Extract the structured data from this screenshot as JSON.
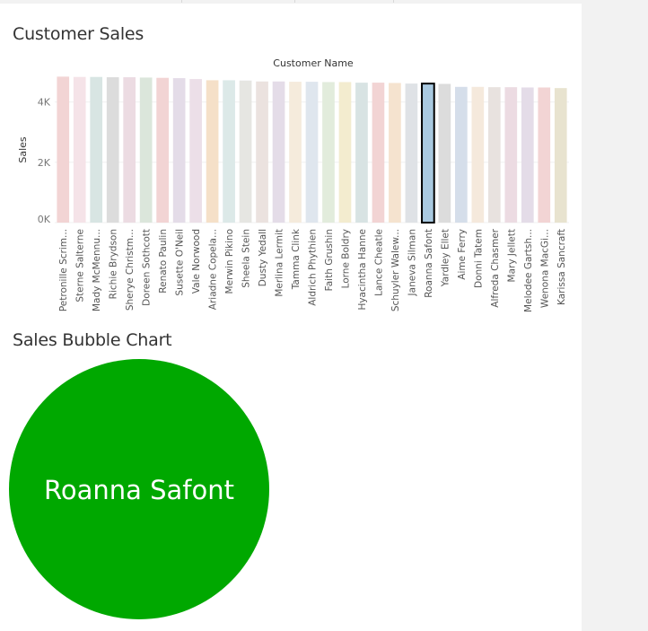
{
  "dashboard": {
    "sheet1_title": "Customer Sales",
    "sheet2_title": "Sales Bubble Chart"
  },
  "chart_data": [
    {
      "type": "bar",
      "title": "Customer Sales",
      "header_label": "Customer Name",
      "ylabel": "Sales",
      "yticks": [
        0,
        2000,
        4000
      ],
      "ytick_labels": [
        "0K",
        "2K",
        "4K"
      ],
      "ylim": [
        0,
        5000
      ],
      "grid": true,
      "selected_category": "Roanna Safont",
      "categories": [
        "Petronille Scrim...",
        "Sterne Salterne",
        "Mady McMennu...",
        "Richie Brydson",
        "Sherye Christm...",
        "Doreen Sothcott",
        "Renato Paulin",
        "Susette O'Neil",
        "Vale Norwood",
        "Ariadne Copela...",
        "Merwin Pikino",
        "Sheela Stein",
        "Dusty Yedall",
        "Merlina Lermit",
        "Tamma Clink",
        "Aldrich Phythien",
        "Faith Grushin",
        "Lorne Boldry",
        "Hyacintha Hanne",
        "Lance Cheatle",
        "Schuyler Walew...",
        "Janeva Silman",
        "Roanna Safont",
        "Yardley Ellet",
        "Aime Ferry",
        "Donni Tatem",
        "Alfreda Chasmer",
        "Mary Jellett",
        "Melodee Gartsh...",
        "Wenona MacGi...",
        "Karissa Sancraft"
      ],
      "values": [
        4840,
        4830,
        4830,
        4820,
        4820,
        4810,
        4800,
        4790,
        4760,
        4720,
        4720,
        4710,
        4680,
        4680,
        4670,
        4670,
        4660,
        4660,
        4640,
        4640,
        4630,
        4610,
        4610,
        4600,
        4500,
        4500,
        4490,
        4490,
        4480,
        4480,
        4460
      ],
      "colors": [
        "#f2d4d4",
        "#f5e3e8",
        "#d8e5e3",
        "#dcdcdc",
        "#ecdbe2",
        "#dbe6db",
        "#f2d4d4",
        "#e4dce8",
        "#ecdfe8",
        "#f5e0c8",
        "#dce9e8",
        "#e6e6e2",
        "#ebe2df",
        "#e4dce8",
        "#f5ebdc",
        "#dfe6ee",
        "#e2ecdc",
        "#f3eccf",
        "#d8e3e3",
        "#f2d4d4",
        "#f5e3cf",
        "#dfe2e6",
        "#a9c9e0",
        "#dcdcdc",
        "#d5deea",
        "#f5e9dc",
        "#e8e2df",
        "#ecdbe2",
        "#e4dce8",
        "#f2d4d4",
        "#e8e3cf"
      ]
    },
    {
      "type": "bubble",
      "title": "Sales Bubble Chart",
      "labels": [
        "Roanna Safont"
      ],
      "values": [
        4610
      ],
      "colors": [
        "#00a800"
      ]
    }
  ]
}
